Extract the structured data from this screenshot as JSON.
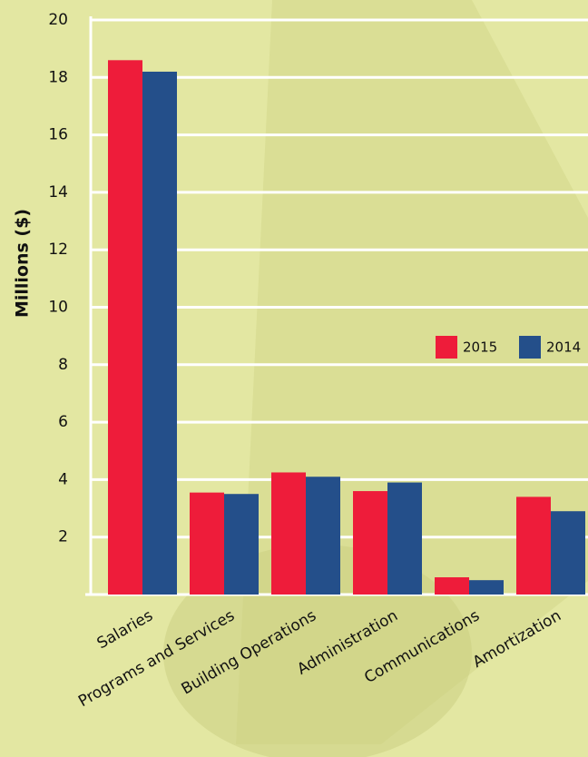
{
  "chart_data": {
    "type": "bar",
    "y_axis_label": "Millions ($)",
    "categories": [
      "Salaries",
      "Programs and Services",
      "Building Operations",
      "Administration",
      "Communications",
      "Amortization"
    ],
    "series": [
      {
        "name": "2015",
        "color": "#ee1c3a",
        "values": [
          18.6,
          3.55,
          4.25,
          3.6,
          0.6,
          3.4
        ]
      },
      {
        "name": "2014",
        "color": "#244f8a",
        "values": [
          18.2,
          3.5,
          4.1,
          3.9,
          0.5,
          2.9
        ]
      }
    ],
    "ylim": [
      0,
      20
    ],
    "yticks": [
      2,
      4,
      6,
      8,
      10,
      12,
      14,
      16,
      18,
      20
    ],
    "grid": true
  }
}
